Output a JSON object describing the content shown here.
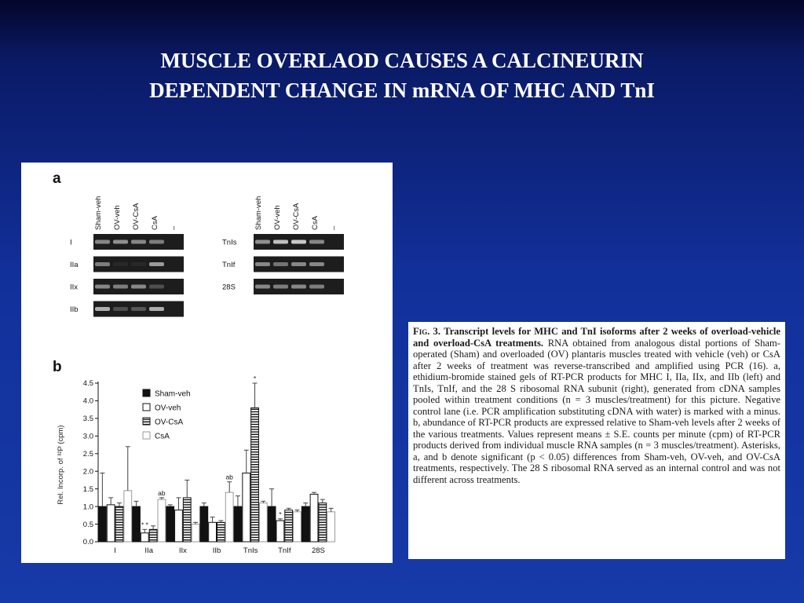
{
  "slide": {
    "title_line1": "MUSCLE OVERLAOD CAUSES A CALCINEURIN",
    "title_line2": "DEPENDENT CHANGE IN mRNA OF MHC AND TnI",
    "background_color": "#12309a",
    "title_color": "#ffffff"
  },
  "figure": {
    "panel_a_label": "a",
    "panel_b_label": "b",
    "gel_lanes": [
      "Sham-veh",
      "OV-veh",
      "OV-CsA",
      "CsA",
      "–"
    ],
    "gel_rows_left": [
      "I",
      "IIa",
      "IIx",
      "IIb"
    ],
    "gel_rows_right": [
      "TnIs",
      "TnIf",
      "28S"
    ]
  },
  "chart_data": {
    "type": "bar",
    "ylabel": "Rel. Incorp. of ³²P (cpm)",
    "ylim": [
      0,
      4.5
    ],
    "yticks": [
      "0.0",
      "0.5",
      "1.0",
      "1.5",
      "2.0",
      "2.5",
      "3.0",
      "3.5",
      "4.0",
      "4.5"
    ],
    "categories": [
      "I",
      "IIa",
      "IIx",
      "IIb",
      "TnIs",
      "TnIf",
      "28S"
    ],
    "series": [
      {
        "name": "Sham-veh",
        "values": [
          1.0,
          1.0,
          1.0,
          1.0,
          1.0,
          1.0,
          1.0
        ],
        "errors": [
          0.95,
          0.15,
          0.05,
          0.1,
          0.3,
          0.5,
          0.1
        ]
      },
      {
        "name": "OV-veh",
        "values": [
          1.05,
          0.25,
          0.9,
          0.55,
          1.95,
          0.6,
          1.35
        ],
        "errors": [
          0.2,
          0.1,
          0.35,
          0.15,
          0.65,
          0.05,
          0.05
        ]
      },
      {
        "name": "OV-CsA",
        "values": [
          1.0,
          0.35,
          1.25,
          0.55,
          3.8,
          0.9,
          1.1
        ],
        "errors": [
          0.1,
          0.1,
          0.5,
          0.05,
          0.7,
          0.05,
          0.1
        ]
      },
      {
        "name": "CsA",
        "values": [
          1.45,
          1.2,
          0.5,
          1.4,
          1.1,
          0.85,
          0.85
        ],
        "errors": [
          1.25,
          0.05,
          0.05,
          0.3,
          0.05,
          0.05,
          0.1
        ]
      }
    ],
    "annotations": [
      {
        "category": "IIa",
        "series": "OV-veh",
        "text": "* *"
      },
      {
        "category": "IIa",
        "series": "CsA",
        "text": "ab"
      },
      {
        "category": "IIb",
        "series": "CsA",
        "text": "ab"
      },
      {
        "category": "TnIs",
        "series": "OV-CsA",
        "text": "*"
      },
      {
        "category": "TnIf",
        "series": "OV-veh",
        "text": "*"
      }
    ],
    "legend_position": "top-right",
    "grid": false
  },
  "caption": {
    "fig_label": "Fig. 3.",
    "fig_title": "Transcript levels for MHC and TnI isoforms after 2 weeks of overload-vehicle and overload-CsA treatments.",
    "body": "RNA obtained from analogous distal portions of Sham-operated (Sham) and overloaded (OV) plantaris muscles treated with vehicle (veh) or CsA after 2 weeks of treatment was reverse-transcribed and amplified using PCR (16). a, ethidium-bromide stained gels of RT-PCR products for MHC I, IIa, IIx, and IIb (left) and TnIs, TnIf, and the 28 S ribosomal RNA subunit (right), generated from cDNA samples pooled within treatment conditions (n = 3 muscles/treatment) for this picture. Negative control lane (i.e. PCR amplification substituting cDNA with water) is marked with a minus. b, abundance of RT-PCR products are expressed relative to Sham-veh levels after 2 weeks of the various treatments. Values represent means ± S.E. counts per minute (cpm) of RT-PCR products derived from individual muscle RNA samples (n = 3 muscles/treatment). Asterisks, a, and b denote significant (p < 0.05) differences from Sham-veh, OV-veh, and OV-CsA treatments, respectively. The 28 S ribosomal RNA served as an internal control and was not different across treatments."
  }
}
